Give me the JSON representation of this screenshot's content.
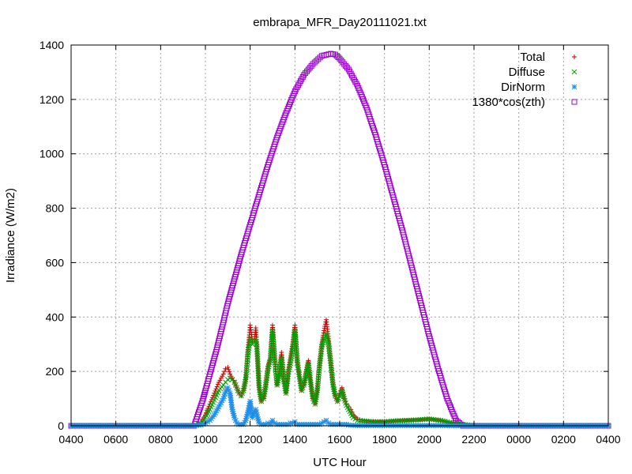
{
  "chart_data": {
    "type": "scatter",
    "title": "embrapa_MFR_Day20111021.txt",
    "xlabel": "UTC Hour",
    "ylabel": "Irradiance (W/m2)",
    "xlim": [
      4,
      28
    ],
    "ylim": [
      0,
      1400
    ],
    "x_ticks": [
      {
        "x": 4,
        "label": "0400"
      },
      {
        "x": 6,
        "label": "0600"
      },
      {
        "x": 8,
        "label": "0800"
      },
      {
        "x": 10,
        "label": "1000"
      },
      {
        "x": 12,
        "label": "1200"
      },
      {
        "x": 14,
        "label": "1400"
      },
      {
        "x": 16,
        "label": "1600"
      },
      {
        "x": 18,
        "label": "1800"
      },
      {
        "x": 20,
        "label": "2000"
      },
      {
        "x": 22,
        "label": "2200"
      },
      {
        "x": 24,
        "label": "0000"
      },
      {
        "x": 26,
        "label": "0200"
      },
      {
        "x": 28,
        "label": "0400"
      }
    ],
    "y_ticks": [
      0,
      200,
      400,
      600,
      800,
      1000,
      1200,
      1400
    ],
    "grid": true,
    "legend_position": "top-right",
    "series": [
      {
        "name": "Total",
        "marker": "plus",
        "color": "#cc0000",
        "x": [
          4.0,
          9.5,
          9.8,
          10.0,
          10.2,
          10.4,
          10.6,
          10.8,
          10.9,
          11.0,
          11.1,
          11.2,
          11.3,
          11.4,
          11.5,
          11.6,
          11.7,
          11.8,
          11.9,
          12.0,
          12.1,
          12.2,
          12.25,
          12.3,
          12.4,
          12.5,
          12.6,
          12.7,
          12.8,
          12.9,
          13.0,
          13.1,
          13.2,
          13.3,
          13.4,
          13.5,
          13.6,
          13.7,
          13.8,
          13.9,
          14.0,
          14.1,
          14.2,
          14.3,
          14.4,
          14.5,
          14.6,
          14.7,
          14.8,
          14.9,
          15.0,
          15.1,
          15.2,
          15.3,
          15.4,
          15.5,
          15.6,
          15.7,
          15.8,
          15.9,
          16.0,
          16.1,
          16.2,
          16.3,
          16.4,
          16.5,
          16.6,
          16.8,
          17.0,
          17.5,
          18.0,
          18.5,
          19.0,
          19.5,
          20.0,
          20.5,
          21.0,
          21.5,
          22.0,
          22.5,
          28.0
        ],
        "y": [
          0,
          0,
          10,
          40,
          80,
          120,
          160,
          190,
          210,
          215,
          190,
          175,
          160,
          140,
          120,
          110,
          130,
          170,
          280,
          370,
          310,
          320,
          360,
          300,
          140,
          90,
          100,
          160,
          220,
          250,
          370,
          250,
          150,
          200,
          270,
          180,
          120,
          200,
          250,
          300,
          370,
          250,
          180,
          130,
          150,
          200,
          240,
          160,
          100,
          80,
          130,
          230,
          300,
          350,
          390,
          320,
          240,
          160,
          110,
          90,
          120,
          140,
          100,
          80,
          70,
          60,
          40,
          25,
          20,
          15,
          15,
          18,
          20,
          22,
          25,
          20,
          10,
          5,
          0,
          0,
          0
        ]
      },
      {
        "name": "Diffuse",
        "marker": "cross",
        "color": "#00a000",
        "x": [
          4.0,
          9.5,
          9.8,
          10.0,
          10.2,
          10.4,
          10.6,
          10.8,
          10.9,
          11.0,
          11.1,
          11.2,
          11.3,
          11.4,
          11.5,
          11.6,
          11.7,
          11.8,
          11.9,
          12.0,
          12.1,
          12.2,
          12.25,
          12.3,
          12.4,
          12.5,
          12.6,
          12.7,
          12.8,
          12.9,
          13.0,
          13.1,
          13.2,
          13.3,
          13.4,
          13.5,
          13.6,
          13.7,
          13.8,
          13.9,
          14.0,
          14.1,
          14.2,
          14.3,
          14.4,
          14.5,
          14.6,
          14.7,
          14.8,
          14.9,
          15.0,
          15.1,
          15.2,
          15.3,
          15.4,
          15.5,
          15.6,
          15.7,
          15.8,
          15.9,
          16.0,
          16.1,
          16.2,
          16.3,
          16.4,
          16.5,
          16.6,
          16.8,
          17.0,
          17.5,
          18.0,
          18.5,
          19.0,
          19.5,
          20.0,
          20.5,
          21.0,
          21.5,
          22.0,
          22.5,
          28.0
        ],
        "y": [
          0,
          0,
          8,
          30,
          60,
          95,
          130,
          150,
          160,
          170,
          175,
          170,
          160,
          140,
          120,
          110,
          130,
          170,
          260,
          320,
          300,
          310,
          320,
          290,
          140,
          90,
          100,
          150,
          210,
          240,
          350,
          240,
          150,
          190,
          250,
          170,
          120,
          190,
          230,
          280,
          350,
          240,
          180,
          130,
          150,
          190,
          230,
          160,
          100,
          80,
          130,
          220,
          290,
          320,
          340,
          300,
          230,
          150,
          110,
          90,
          110,
          130,
          100,
          75,
          60,
          45,
          30,
          20,
          18,
          15,
          15,
          18,
          20,
          22,
          25,
          20,
          10,
          5,
          0,
          0,
          0
        ]
      },
      {
        "name": "DirNorm",
        "marker": "star",
        "color": "#1f8fe8",
        "x": [
          4.0,
          9.5,
          9.8,
          10.0,
          10.2,
          10.4,
          10.6,
          10.8,
          10.9,
          11.0,
          11.1,
          11.2,
          11.3,
          11.4,
          11.5,
          11.6,
          11.7,
          11.8,
          11.9,
          12.0,
          12.1,
          12.2,
          12.25,
          12.3,
          12.4,
          12.5,
          12.6,
          12.7,
          12.8,
          12.9,
          13.0,
          13.1,
          13.2,
          13.3,
          13.4,
          13.5,
          13.6,
          13.7,
          13.8,
          13.9,
          14.0,
          14.1,
          14.2,
          14.3,
          14.4,
          14.5,
          14.6,
          14.7,
          14.8,
          14.9,
          15.0,
          15.1,
          15.2,
          15.3,
          15.4,
          15.5,
          15.6,
          15.7,
          15.8,
          15.9,
          16.0,
          16.1,
          16.2,
          16.3,
          16.4,
          16.5,
          16.6,
          16.8,
          17.0,
          17.5,
          18.0,
          18.5,
          19.0,
          19.5,
          20.0,
          20.5,
          21.0,
          21.5,
          22.0,
          22.5,
          28.0
        ],
        "y": [
          0,
          0,
          3,
          10,
          20,
          40,
          70,
          100,
          125,
          140,
          120,
          60,
          30,
          10,
          5,
          5,
          5,
          20,
          50,
          90,
          30,
          50,
          60,
          40,
          10,
          5,
          5,
          5,
          10,
          5,
          20,
          10,
          5,
          5,
          5,
          5,
          5,
          5,
          10,
          10,
          15,
          5,
          5,
          5,
          5,
          5,
          5,
          5,
          5,
          5,
          5,
          5,
          10,
          15,
          20,
          10,
          5,
          5,
          5,
          5,
          5,
          5,
          5,
          5,
          3,
          2,
          2,
          1,
          1,
          1,
          1,
          1,
          1,
          1,
          1,
          1,
          0,
          0,
          0,
          0,
          0
        ]
      },
      {
        "name": "1380*cos(zth)",
        "marker": "square",
        "color": "#a000d8",
        "x": [
          4.0,
          6.0,
          8.0,
          9.5,
          9.7,
          9.9,
          10.0,
          10.2,
          10.5,
          10.8,
          11.0,
          11.3,
          11.6,
          12.0,
          12.4,
          12.8,
          13.2,
          13.6,
          14.0,
          14.4,
          14.8,
          15.2,
          15.6,
          15.8,
          16.0,
          16.4,
          16.8,
          17.2,
          17.6,
          18.0,
          18.4,
          18.8,
          19.2,
          19.6,
          20.0,
          20.4,
          20.8,
          21.2,
          21.5,
          21.8,
          22.0,
          22.3,
          24.0,
          26.0,
          28.0
        ],
        "y": [
          0,
          0,
          0,
          0,
          50,
          100,
          130,
          190,
          280,
          380,
          450,
          540,
          630,
          740,
          850,
          960,
          1060,
          1150,
          1230,
          1290,
          1330,
          1360,
          1368,
          1365,
          1350,
          1310,
          1250,
          1170,
          1070,
          960,
          840,
          720,
          590,
          460,
          330,
          210,
          100,
          20,
          0,
          0,
          0,
          0,
          0,
          0,
          0
        ]
      }
    ]
  }
}
